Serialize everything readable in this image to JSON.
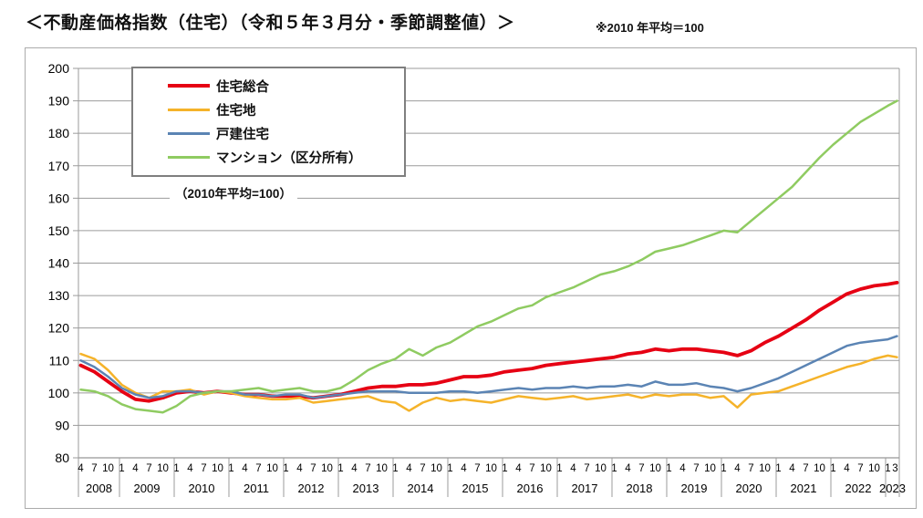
{
  "header": {
    "title": "＜不動産価格指数（住宅）（令和５年３月分・季節調整値）＞",
    "note": "※2010 年平均＝100"
  },
  "legend_note": "（2010年平均=100）",
  "chart_data": {
    "type": "line",
    "title": "不動産価格指数（住宅）（令和５年３月分・季節調整値）",
    "subtitle_note": "2010年平均=100",
    "grid": "horizontal",
    "legend_position": "top-left",
    "ylim": [
      80,
      200
    ],
    "ytick_step": 10,
    "x_axis": {
      "unit": "months_since_2008_04",
      "start": "2008-04",
      "end": "2023-03",
      "month_label_row": "quarterly ticks 4,7,10,1 per year; final ticks 1,3 in 2023",
      "years": [
        2008,
        2009,
        2010,
        2011,
        2012,
        2013,
        2014,
        2015,
        2016,
        2017,
        2018,
        2019,
        2020,
        2021,
        2022,
        2023
      ]
    },
    "x": [
      0,
      3,
      6,
      9,
      12,
      15,
      18,
      21,
      24,
      27,
      30,
      33,
      36,
      39,
      42,
      45,
      48,
      51,
      54,
      57,
      60,
      63,
      66,
      69,
      72,
      75,
      78,
      81,
      84,
      87,
      90,
      93,
      96,
      99,
      102,
      105,
      108,
      111,
      114,
      117,
      120,
      123,
      126,
      129,
      132,
      135,
      138,
      141,
      144,
      147,
      150,
      153,
      156,
      159,
      162,
      165,
      168,
      171,
      174,
      177,
      179
    ],
    "series": [
      {
        "key": "housing-overall",
        "name": "住宅総合",
        "color": "#e60013",
        "line_width": 3.8,
        "values": [
          108.5,
          106.5,
          103.5,
          100.5,
          98.0,
          97.5,
          98.5,
          100.0,
          100.5,
          100.0,
          100.5,
          100.0,
          99.5,
          99.5,
          99.0,
          99.0,
          99.0,
          98.5,
          99.0,
          99.5,
          100.5,
          101.5,
          102.0,
          102.0,
          102.5,
          102.5,
          103.0,
          104.0,
          105.0,
          105.0,
          105.5,
          106.5,
          107.0,
          107.5,
          108.5,
          109.0,
          109.5,
          110.0,
          110.5,
          111.0,
          112.0,
          112.5,
          113.5,
          113.0,
          113.5,
          113.5,
          113.0,
          112.5,
          111.5,
          113.0,
          115.5,
          117.5,
          120.0,
          122.5,
          125.5,
          128.0,
          130.5,
          132.0,
          133.0,
          133.5,
          134.0
        ]
      },
      {
        "key": "residential-land",
        "name": "住宅地",
        "color": "#f5b32a",
        "line_width": 2.5,
        "values": [
          112.0,
          110.5,
          107.0,
          102.5,
          100.0,
          98.5,
          100.5,
          100.5,
          101.0,
          99.5,
          100.5,
          100.0,
          99.0,
          98.5,
          98.0,
          98.0,
          98.5,
          97.0,
          97.5,
          98.0,
          98.5,
          99.0,
          97.5,
          97.0,
          94.5,
          97.0,
          98.5,
          97.5,
          98.0,
          97.5,
          97.0,
          98.0,
          99.0,
          98.5,
          98.0,
          98.5,
          99.0,
          98.0,
          98.5,
          99.0,
          99.5,
          98.5,
          99.5,
          99.0,
          99.5,
          99.5,
          98.5,
          99.0,
          95.5,
          99.5,
          100.0,
          100.5,
          102.0,
          103.5,
          105.0,
          106.5,
          108.0,
          109.0,
          110.5,
          111.5,
          111.0
        ]
      },
      {
        "key": "detached-house",
        "name": "戸建住宅",
        "color": "#5b84b4",
        "line_width": 2.5,
        "values": [
          110.0,
          108.0,
          105.0,
          101.5,
          99.5,
          98.5,
          99.0,
          100.5,
          100.5,
          100.0,
          100.5,
          100.5,
          99.5,
          99.5,
          99.0,
          99.5,
          99.5,
          98.5,
          99.0,
          99.5,
          100.0,
          100.5,
          100.5,
          100.5,
          100.0,
          100.0,
          100.0,
          100.5,
          100.5,
          100.0,
          100.5,
          101.0,
          101.5,
          101.0,
          101.5,
          101.5,
          102.0,
          101.5,
          102.0,
          102.0,
          102.5,
          102.0,
          103.5,
          102.5,
          102.5,
          103.0,
          102.0,
          101.5,
          100.5,
          101.5,
          103.0,
          104.5,
          106.5,
          108.5,
          110.5,
          112.5,
          114.5,
          115.5,
          116.0,
          116.5,
          117.5
        ]
      },
      {
        "key": "condominium",
        "name": "マンション（区分所有）",
        "color": "#8fcb61",
        "line_width": 2.5,
        "values": [
          101.0,
          100.5,
          99.0,
          96.5,
          95.0,
          94.5,
          94.0,
          96.0,
          99.0,
          100.0,
          100.5,
          100.5,
          101.0,
          101.5,
          100.5,
          101.0,
          101.5,
          100.5,
          100.5,
          101.5,
          104.0,
          107.0,
          109.0,
          110.5,
          113.5,
          111.5,
          114.0,
          115.5,
          118.0,
          120.5,
          122.0,
          124.0,
          126.0,
          127.0,
          129.5,
          131.0,
          132.5,
          134.5,
          136.5,
          137.5,
          139.0,
          141.0,
          143.5,
          144.5,
          145.5,
          147.0,
          148.5,
          150.0,
          149.5,
          153.0,
          156.5,
          160.0,
          163.5,
          168.0,
          172.5,
          176.5,
          180.0,
          183.5,
          186.0,
          188.5,
          190.0
        ]
      }
    ]
  }
}
